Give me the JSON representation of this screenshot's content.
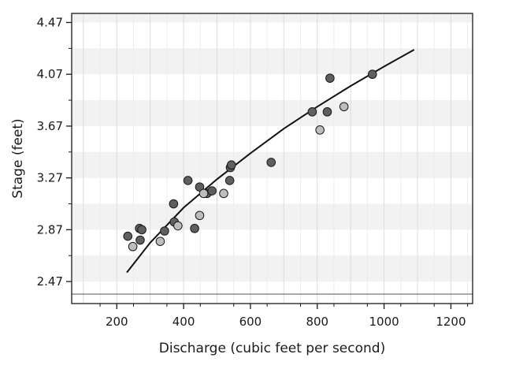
{
  "chart_data": {
    "type": "scatter",
    "title": "",
    "xlabel": "Discharge (cubic feet per second)",
    "ylabel": "Stage (feet)",
    "xlim": [
      65,
      1265
    ],
    "ylim": [
      2.3,
      4.54
    ],
    "xticks": [
      200,
      400,
      600,
      800,
      1000,
      1200
    ],
    "yticks": [
      2.47,
      2.87,
      3.27,
      3.67,
      4.07,
      4.47
    ],
    "grid": true,
    "band_fill_color": "#f2f2f2",
    "point_dark_color": "#5f5f5f",
    "point_light_color": "#bdbdbd",
    "point_outline_color": "#1a1a1a",
    "series": [
      {
        "marker": "dark-circle",
        "points": [
          {
            "x": 233,
            "y": 2.82
          },
          {
            "x": 268,
            "y": 2.88
          },
          {
            "x": 275,
            "y": 2.87
          },
          {
            "x": 270,
            "y": 2.79
          },
          {
            "x": 343,
            "y": 2.86
          },
          {
            "x": 372,
            "y": 2.93
          },
          {
            "x": 370,
            "y": 3.07
          },
          {
            "x": 413,
            "y": 3.25
          },
          {
            "x": 448,
            "y": 3.2
          },
          {
            "x": 470,
            "y": 3.15
          },
          {
            "x": 485,
            "y": 3.17
          },
          {
            "x": 433,
            "y": 2.88
          },
          {
            "x": 538,
            "y": 3.25
          },
          {
            "x": 540,
            "y": 3.35
          },
          {
            "x": 543,
            "y": 3.37
          },
          {
            "x": 662,
            "y": 3.39
          },
          {
            "x": 785,
            "y": 3.78
          },
          {
            "x": 830,
            "y": 3.78
          },
          {
            "x": 838,
            "y": 4.04
          },
          {
            "x": 965,
            "y": 4.07
          }
        ]
      },
      {
        "marker": "light-circle",
        "points": [
          {
            "x": 248,
            "y": 2.74
          },
          {
            "x": 330,
            "y": 2.78
          },
          {
            "x": 383,
            "y": 2.9
          },
          {
            "x": 448,
            "y": 2.98
          },
          {
            "x": 460,
            "y": 3.15
          },
          {
            "x": 520,
            "y": 3.15
          },
          {
            "x": 808,
            "y": 3.64
          },
          {
            "x": 880,
            "y": 3.82
          }
        ]
      }
    ],
    "curve": {
      "name": "",
      "x": [
        230,
        300,
        400,
        500,
        600,
        700,
        800,
        900,
        1000,
        1090
      ],
      "y": [
        2.54,
        2.77,
        3.04,
        3.26,
        3.46,
        3.65,
        3.82,
        3.98,
        4.13,
        4.26
      ]
    }
  }
}
